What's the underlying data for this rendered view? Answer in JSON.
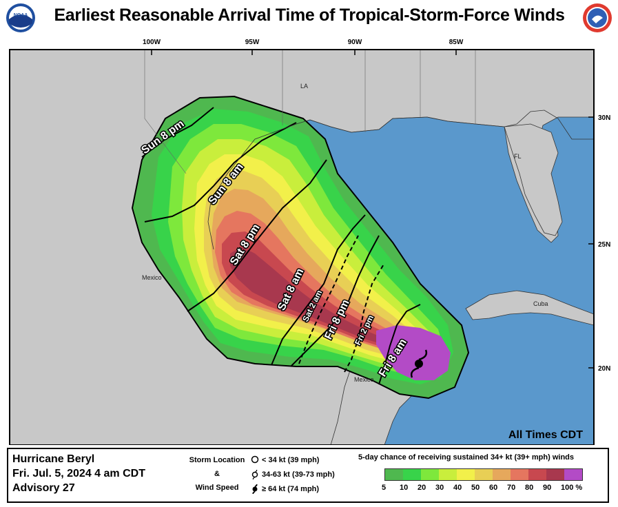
{
  "title": "Earliest Reasonable Arrival Time of Tropical-Storm-Force Winds",
  "logos": {
    "left": "NOAA",
    "right": "National Weather Service"
  },
  "map": {
    "lon_labels": [
      "100W",
      "95W",
      "90W",
      "85W"
    ],
    "lat_labels": [
      "30N",
      "25N",
      "20N"
    ],
    "place_labels": {
      "la": "LA",
      "fl": "FL",
      "mexico": "Mexico",
      "mexico2": "Mexico",
      "cuba": "Cuba"
    },
    "time_labels": {
      "sun8pm": "Sun  8  pm",
      "sun8am": "Sun  8  am",
      "sat8pm": "Sat  8  pm",
      "sat8am": "Sat  8  am",
      "sat2am": "Sat  2  am",
      "fri8pm": "Fri  8  pm",
      "fri2pm": "Fri  2  pm",
      "fri8am": "Fri  8  am"
    },
    "times_note": "All Times CDT"
  },
  "footer": {
    "storm_name": "Hurricane Beryl",
    "date_time": "Fri. Jul. 5, 2024   4 am CDT",
    "advisory": "Advisory 27",
    "storm_location_label": "Storm Location",
    "ampersand": "&",
    "wind_speed_label": "Wind Speed",
    "sym_lt34": "< 34 kt (39 mph)",
    "sym_34_63": "34-63 kt (39-73 mph)",
    "sym_ge64": "≥ 64 kt (74 mph)",
    "legend_title": "5-day chance of receiving sustained 34+ kt (39+ mph) winds",
    "legend_values": [
      "5",
      "10",
      "20",
      "30",
      "40",
      "50",
      "60",
      "70",
      "80",
      "90",
      "100 %"
    ],
    "legend_colors": [
      "#4fb84f",
      "#38d34a",
      "#7ee83c",
      "#c9ee3c",
      "#f2f04a",
      "#e8cf55",
      "#e6a85c",
      "#e5765f",
      "#c8484f",
      "#a8384e",
      "#b34bc6"
    ]
  },
  "colors": {
    "ocean": "#5a98cc",
    "land": "#c8c8c8",
    "p5": "#4fb84f",
    "p10": "#38d34a",
    "p20": "#7ee83c",
    "p30": "#c9ee3c",
    "p40": "#f2f04a",
    "p50": "#e8cf55",
    "p60": "#e6a85c",
    "p70": "#e5765f",
    "p80": "#c8484f",
    "p90": "#a8384e",
    "p100": "#b34bc6"
  }
}
